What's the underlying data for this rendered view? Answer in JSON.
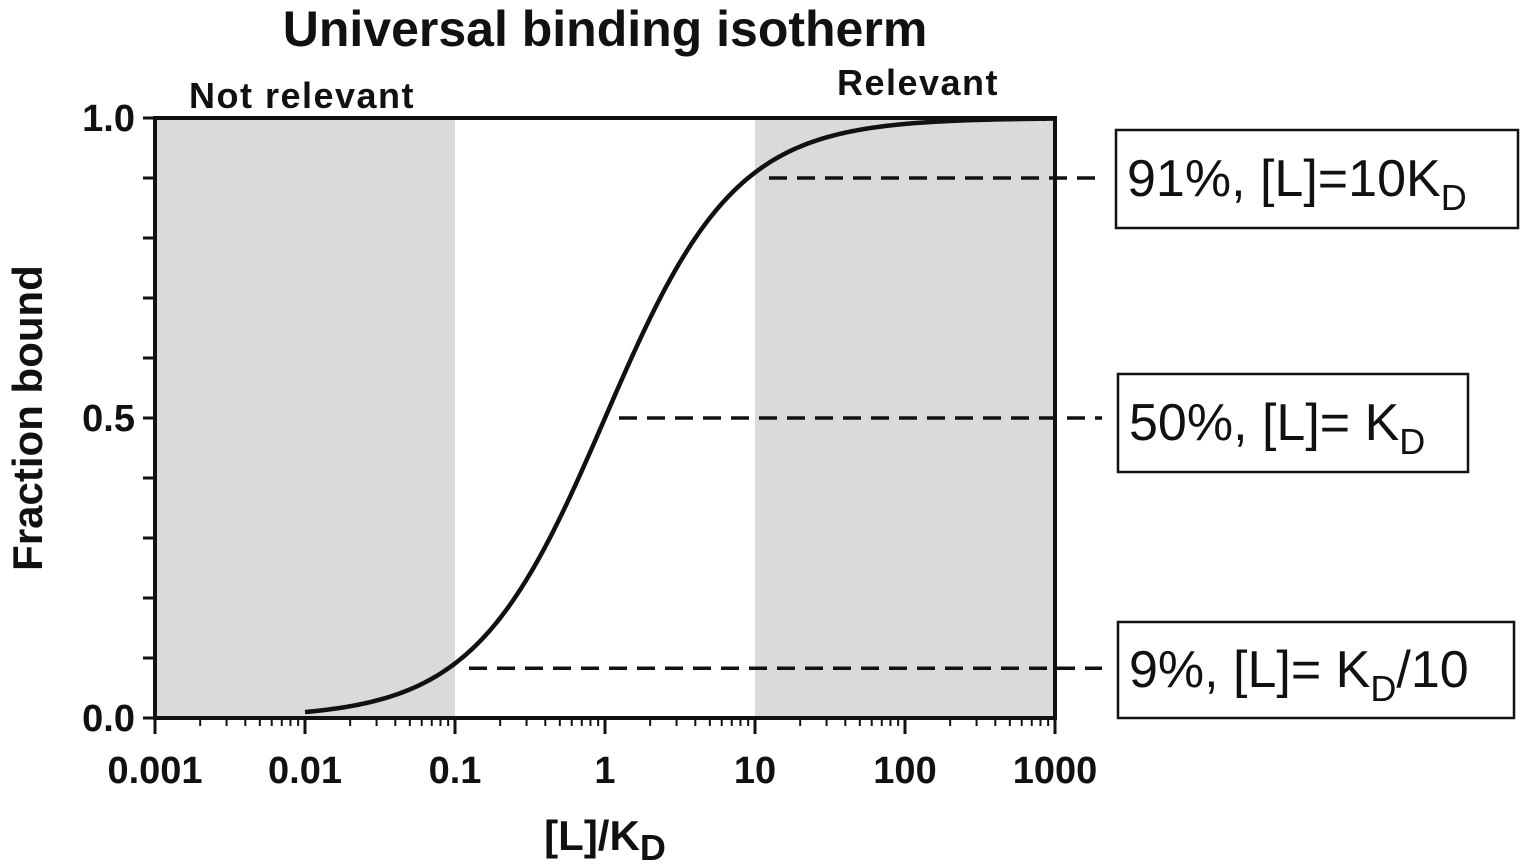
{
  "chart_data": {
    "type": "line",
    "title": "Universal binding isotherm",
    "xlabel": {
      "main": "[L]/K",
      "sub": "D"
    },
    "ylabel": "Fraction bound",
    "x_scale": "log",
    "xlim": [
      0.001,
      1000
    ],
    "ylim": [
      0,
      1
    ],
    "x_ticks": [
      0.001,
      0.01,
      0.1,
      1,
      10,
      100,
      1000
    ],
    "x_tick_labels": [
      "0.001",
      "0.01",
      "0.1",
      "1",
      "10",
      "100",
      "1000"
    ],
    "y_ticks": [
      0,
      0.5,
      1
    ],
    "y_tick_labels": [
      "0.0",
      "0.5",
      "1.0"
    ],
    "series": [
      {
        "x": [
          0.01,
          0.02,
          0.05,
          0.1,
          0.2,
          0.5,
          1,
          2,
          5,
          10,
          20,
          50,
          100,
          200,
          500,
          1000
        ],
        "y": [
          0.0099,
          0.0196,
          0.0476,
          0.0909,
          0.1667,
          0.3333,
          0.5,
          0.6667,
          0.8333,
          0.9091,
          0.9524,
          0.9804,
          0.9901,
          0.995,
          0.998,
          0.999
        ],
        "color": "#111111"
      }
    ],
    "shaded_regions": [
      {
        "label": "Not relevant",
        "x_range": [
          0.001,
          0.1
        ],
        "color": "#d9dadc"
      },
      {
        "label": "Relevant",
        "x_range": [
          10,
          1000
        ],
        "color": "#d9dadc"
      }
    ],
    "annotations": [
      {
        "x": 10,
        "y": 0.9,
        "parts": [
          [
            "91%, [L]=10K",
            ""
          ],
          [
            "D",
            "sub"
          ]
        ]
      },
      {
        "x": 1,
        "y": 0.5,
        "parts": [
          [
            "50%, [L]= K",
            ""
          ],
          [
            "D",
            "sub"
          ]
        ]
      },
      {
        "x": 0.1,
        "y": 0.083,
        "parts": [
          [
            "9%, [L]= K",
            ""
          ],
          [
            "D",
            "sub"
          ],
          [
            "/10",
            ""
          ]
        ]
      }
    ],
    "grid": false
  }
}
